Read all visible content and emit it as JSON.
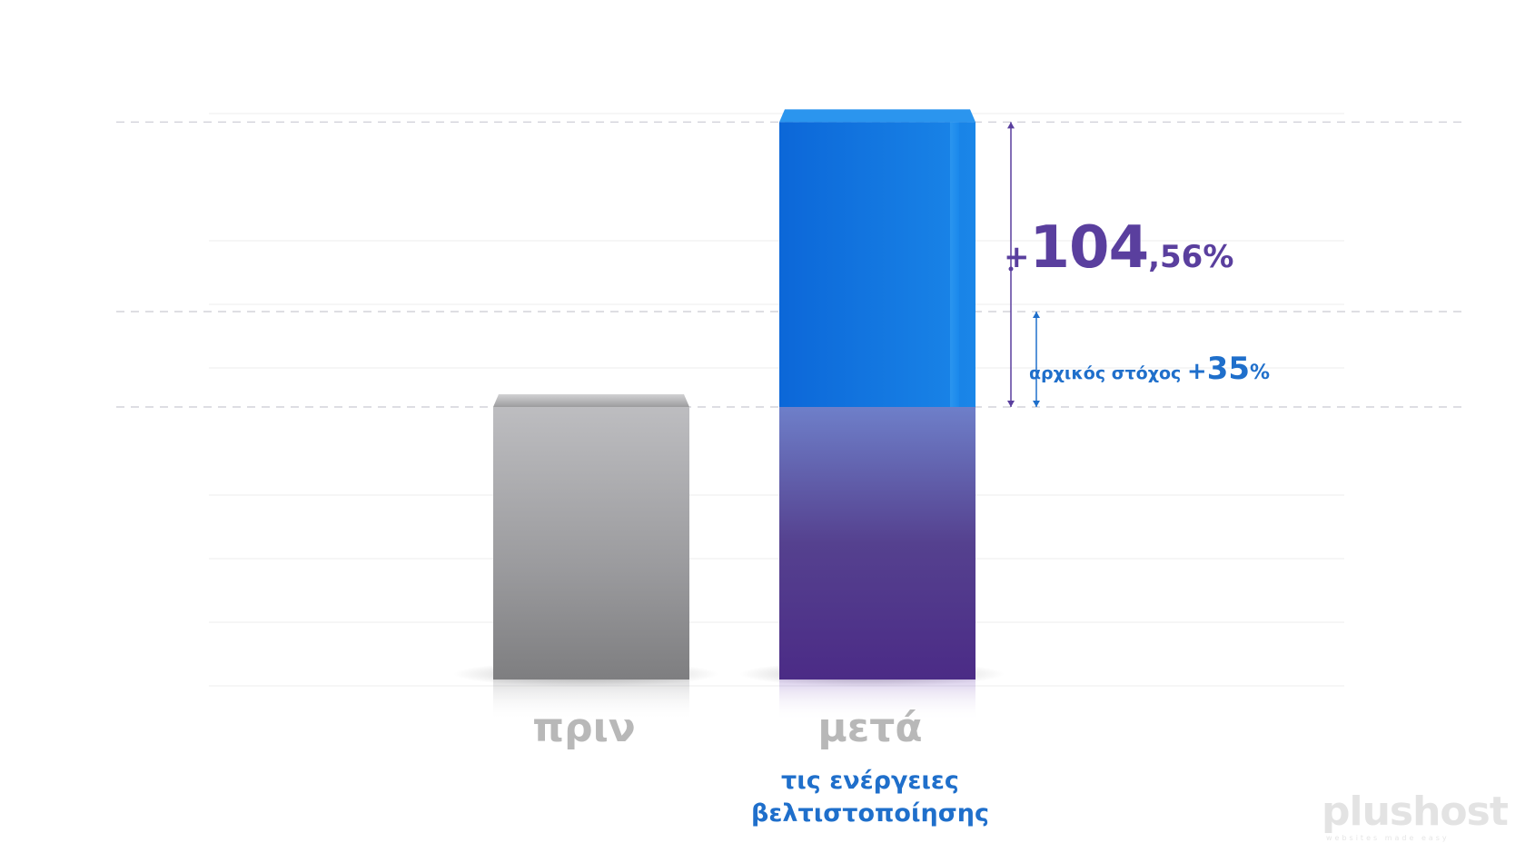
{
  "chart_data": {
    "type": "bar",
    "categories": [
      "πριν",
      "μετά"
    ],
    "values": [
      100,
      204.56
    ],
    "baseline_max": 135,
    "sub_label": "τις ενέργειες βελτιστοποίησης",
    "sub_label_lines": [
      "τις ενέργειες",
      "βελτιστοποίησης"
    ],
    "annotations": {
      "increase": {
        "plus": "+",
        "int": "104",
        "dec": ",56%"
      },
      "target": {
        "label": "αρχικός στόχος ",
        "plus": "+",
        "num": "35",
        "pct": "%"
      }
    },
    "colors": {
      "before_bar": "#a0a0a3",
      "after_top": "#1a86e8",
      "after_bottom": "#6a3fb0",
      "increase_text": "#5a3f9e",
      "target_text": "#1f6fcb",
      "category_text": "#b8b8b8"
    }
  },
  "logo": {
    "text": "plushost",
    "tagline": "websites made easy"
  }
}
